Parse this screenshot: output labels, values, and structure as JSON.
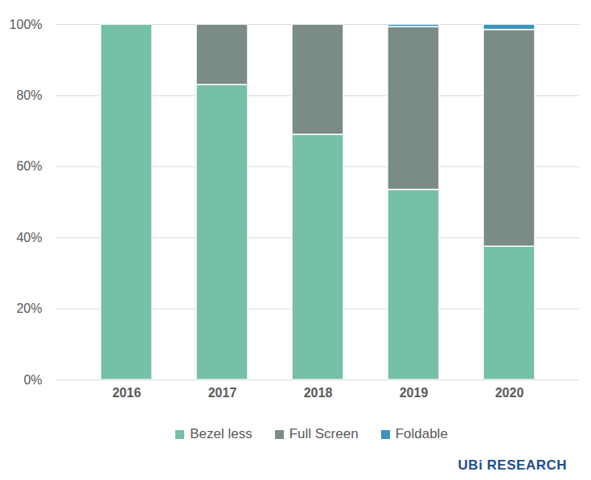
{
  "chart_data": {
    "type": "bar",
    "stacked": true,
    "categories": [
      "2016",
      "2017",
      "2018",
      "2019",
      "2020"
    ],
    "series": [
      {
        "name": "Bezel less",
        "color": "#76c0a6",
        "values": [
          100,
          83,
          69,
          53.5,
          37.5
        ]
      },
      {
        "name": "Full Screen",
        "color": "#7a8b88",
        "values": [
          0,
          17,
          31,
          45.8,
          61
        ]
      },
      {
        "name": "Foldable",
        "color": "#3a93ba",
        "values": [
          0,
          0,
          0,
          0.7,
          1.5
        ]
      }
    ],
    "ylim": [
      0,
      100
    ],
    "yticks": [
      {
        "value": 0,
        "label": "0%"
      },
      {
        "value": 20,
        "label": "20%"
      },
      {
        "value": 40,
        "label": "40%"
      },
      {
        "value": 60,
        "label": "60%"
      },
      {
        "value": 80,
        "label": "80%"
      },
      {
        "value": 100,
        "label": "100%"
      }
    ],
    "grid": true,
    "legend": "bottom",
    "annotations": [
      "UBi RESEARCH"
    ]
  }
}
